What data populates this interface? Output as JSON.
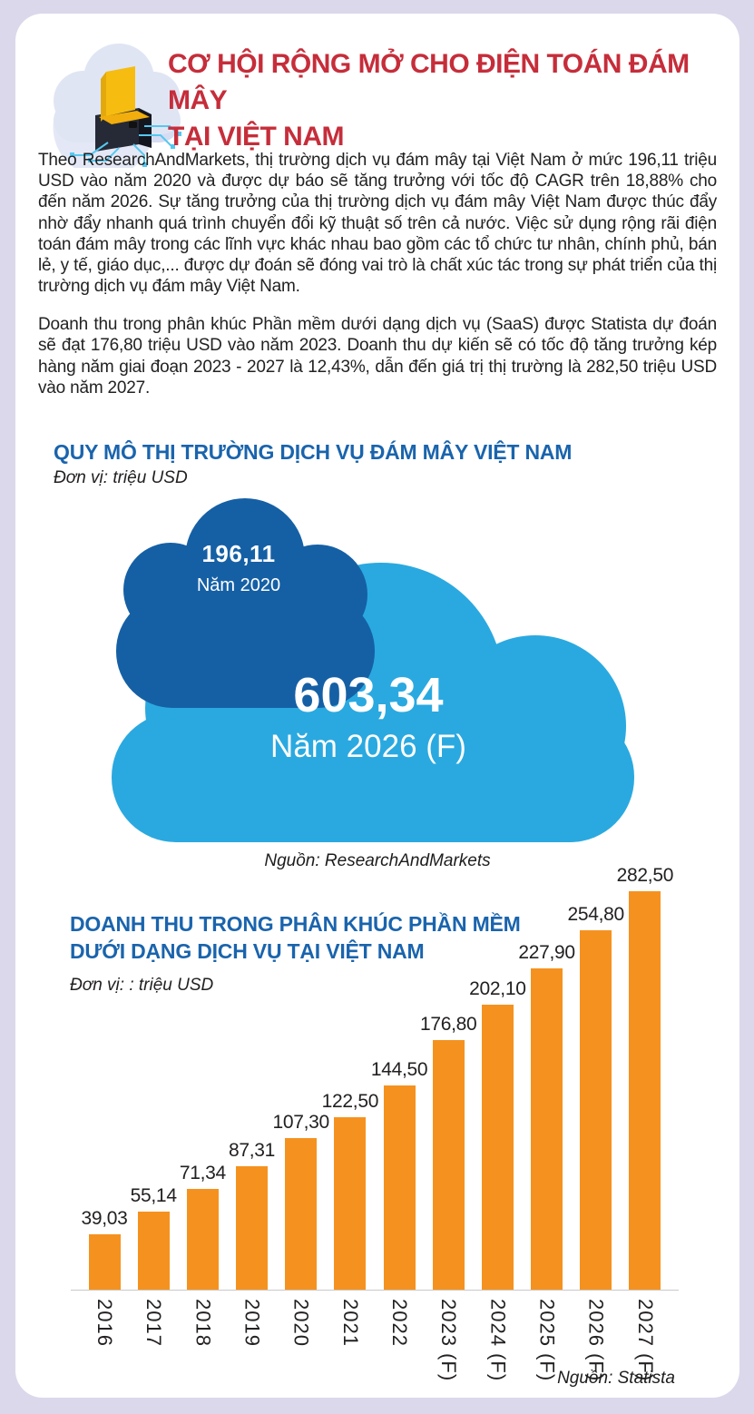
{
  "header": {
    "title_line1": "CƠ HỘI RỘNG MỞ CHO ĐIỆN TOÁN ĐÁM MÂY",
    "title_line2": "TẠI VIỆT NAM",
    "title_color": "#c62d3a",
    "icon": "cloud-computing-icon"
  },
  "paragraphs": [
    "Theo ResearchAndMarkets, thị trường dịch vụ đám mây tại Việt Nam ở mức 196,11 triệu USD vào năm 2020 và được dự báo sẽ tăng trưởng với tốc độ CAGR trên 18,88% cho đến năm 2026. Sự tăng trưởng của thị trường dịch vụ đám mây Việt Nam được thúc đẩy nhờ đẩy nhanh quá trình chuyển đổi kỹ thuật số trên cả nước. Việc sử dụng rộng rãi điện toán đám mây trong các lĩnh vực khác nhau bao gồm các tổ chức tư nhân, chính phủ, bán lẻ, y tế, giáo dục,... được dự đoán sẽ đóng vai trò là chất xúc tác trong sự phát triển của thị trường dịch vụ đám mây Việt Nam.",
    "Doanh thu trong phân khúc Phần mềm dưới dạng dịch vụ (SaaS) được Statista dự đoán sẽ đạt 176,80 triệu USD vào năm 2023. Doanh thu dự kiến sẽ có tốc độ tăng trưởng kép hàng năm giai đoạn 2023 - 2027 là 12,43%, dẫn đến giá trị thị trường là 282,50 triệu USD vào năm 2027."
  ],
  "market_chart": {
    "title": "QUY MÔ THỊ TRƯỜNG DỊCH VỤ ĐÁM MÂY VIỆT NAM",
    "unit": "Đơn vị: triệu USD",
    "source": "Nguồn: ResearchAndMarkets"
  },
  "saas_chart": {
    "title_line1": "DOANH THU TRONG PHÂN KHÚC PHẦN MỀM",
    "title_line2": "DƯỚI DẠNG DỊCH VỤ TẠI VIỆT NAM",
    "unit": "Đơn vị: : triệu USD",
    "source": "Nguồn: Statista"
  },
  "colors": {
    "page_background": "#dbd8ec",
    "card_background": "#ffffff",
    "heading_red": "#c62d3a",
    "section_blue": "#1a64ad",
    "dark_cloud_blue": "#1560a5",
    "light_cloud_blue": "#2aa9e0",
    "bar_orange": "#f5921f"
  },
  "chart_data": [
    {
      "type": "pictorial",
      "title": "QUY MÔ THỊ TRƯỜNG DỊCH VỤ ĐÁM MÂY VIỆT NAM",
      "unit": "triệu USD",
      "source": "Nguồn: ResearchAndMarkets",
      "points": [
        {
          "label": "Năm 2020",
          "value": 196.11,
          "display": "196,11",
          "color": "#1560a5"
        },
        {
          "label": "Năm 2026 (F)",
          "value": 603.34,
          "display": "603,34",
          "color": "#2aa9e0"
        }
      ]
    },
    {
      "type": "bar",
      "title": "DOANH THU TRONG PHÂN KHÚC PHẦN MỀM DƯỚI DẠNG DỊCH VỤ TẠI VIỆT NAM",
      "unit": "triệu USD",
      "source": "Nguồn: Statista",
      "categories": [
        "2016",
        "2017",
        "2018",
        "2019",
        "2020",
        "2021",
        "2022",
        "2023 (F)",
        "2024 (F)",
        "2025 (F)",
        "2026 (F)",
        "2027 (F)"
      ],
      "values": [
        39.03,
        55.14,
        71.34,
        87.31,
        107.3,
        122.5,
        144.5,
        176.8,
        202.1,
        227.9,
        254.8,
        282.5
      ],
      "labels": [
        "39,03",
        "55,14",
        "71,34",
        "87,31",
        "107,30",
        "122,50",
        "144,50",
        "176,80",
        "202,10",
        "227,90",
        "254,80",
        "282,50"
      ],
      "bar_color": "#f5921f",
      "ylim": [
        0,
        290
      ],
      "grid": false,
      "legend": false
    }
  ]
}
